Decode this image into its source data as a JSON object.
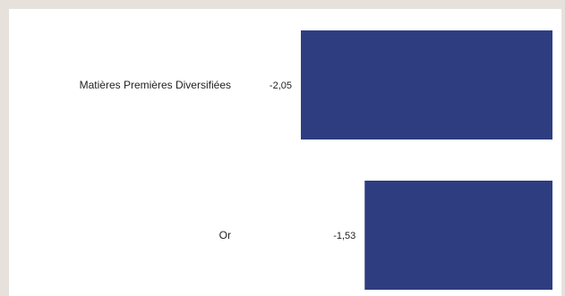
{
  "chart_data": {
    "type": "bar",
    "orientation": "horizontal",
    "categories": [
      "Matières Premières Diversifiées",
      "Or"
    ],
    "values": [
      -2.05,
      -1.53
    ],
    "value_labels": [
      "-2,05",
      "-1,53"
    ],
    "title": "",
    "xlabel": "",
    "ylabel": "",
    "bar_color": "#2e3d80",
    "grid": false,
    "legend": "none"
  }
}
